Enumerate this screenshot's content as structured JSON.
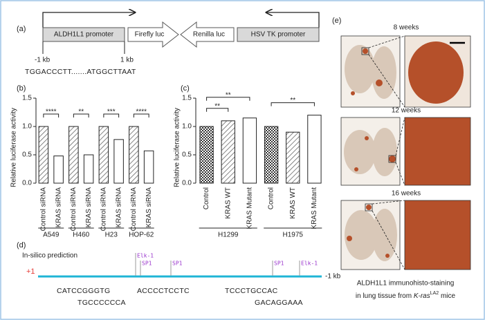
{
  "panel_a": {
    "label": "(a)",
    "elements": [
      "ALDH1L1 promoter",
      "Firefly luc",
      "Renilla luc",
      "HSV TK promoter"
    ],
    "left_mark": "-1 kb",
    "right_mark": "1 kb",
    "sequence": "TGGACCCTT.......ATGGCTTAAT"
  },
  "chart_data": [
    {
      "type": "bar",
      "panel_label": "(b)",
      "y_label": "Relative luciferase activity",
      "categories": [
        "Control siRNA",
        "KRAS siRNA",
        "Control siRNA",
        "KRAS siRNA",
        "Control siRNA",
        "KRAS siRNA",
        "Control siRNA",
        "KRAS siRNA"
      ],
      "groups": [
        "A549",
        "H460",
        "H23",
        "HOP-62"
      ],
      "values": [
        1.0,
        0.48,
        1.0,
        0.5,
        1.0,
        0.77,
        1.0,
        0.57
      ],
      "significance": [
        "****",
        "**",
        "***",
        "****"
      ],
      "ylim": [
        0,
        1.5
      ],
      "yticks": [
        {
          "value": 0,
          "label": "0.0"
        },
        0.5,
        {
          "value": 1,
          "label": "1.0"
        },
        1.5
      ]
    },
    {
      "type": "bar",
      "panel_label": "(c)",
      "y_label": "Relative luciferase activity",
      "categories": [
        "Control",
        "KRAS WT",
        "KRAS Mutant",
        "Control",
        "KRAS WT",
        "KRAS Mutant"
      ],
      "groups": [
        "H1299",
        "H1975"
      ],
      "values": [
        1.0,
        1.1,
        1.15,
        1.0,
        0.9,
        1.2
      ],
      "significance": [
        "**",
        "**",
        "**"
      ],
      "ylim": [
        0,
        1.5
      ],
      "yticks": [
        {
          "value": 0,
          "label": "0.0"
        },
        0.5,
        {
          "value": 1,
          "label": "1.0"
        },
        1.5
      ]
    }
  ],
  "panel_d": {
    "label": "(d)",
    "title": "In-silico prediction",
    "start": "+1",
    "end": "-1 kb",
    "sites": [
      "Elk-1",
      "SP1",
      "SP1",
      "SP1",
      "Elk-1"
    ],
    "sequences": [
      "CATCCGGGTG",
      "ACCCCTCCTC",
      "TCCCTGCCAC",
      "TGCCCCCCA",
      "GACAGGAAA"
    ]
  },
  "panel_e": {
    "label": "(e)",
    "timepoints": [
      "8 weeks",
      "12 weeks",
      "16 weeks"
    ],
    "caption": {
      "line1": "ALDH1L1 immunohisto-staining",
      "prefix": "in lung tissue from ",
      "gene": "K-ras",
      "superscript": "LA2",
      "suffix": " mice"
    }
  }
}
